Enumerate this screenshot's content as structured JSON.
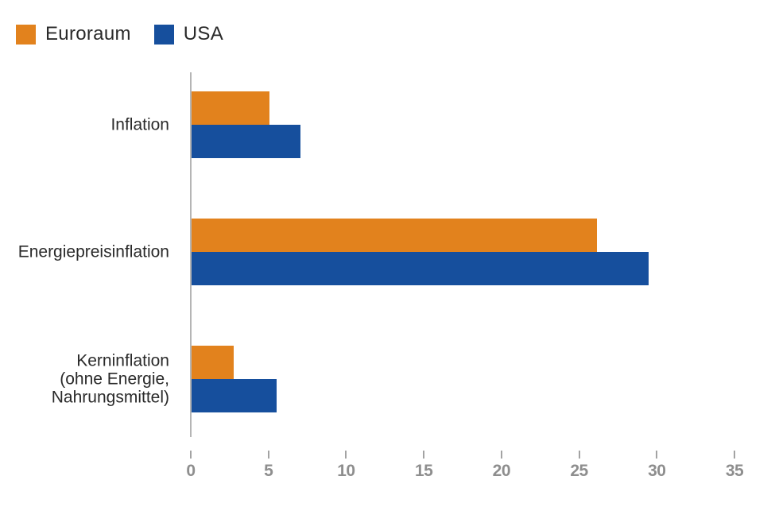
{
  "legend": {
    "items": [
      {
        "label": "Euroraum",
        "color": "#e2821d"
      },
      {
        "label": "USA",
        "color": "#164f9d"
      }
    ]
  },
  "chart_data": {
    "type": "bar",
    "orientation": "horizontal",
    "title": "",
    "categories": [
      "Inflation",
      "Energiepreisinflation",
      "Kerninflation\n(ohne Energie,\nNahrungsmittel)"
    ],
    "series": [
      {
        "name": "Euroraum",
        "color": "#e2821d",
        "values": [
          5.0,
          26.1,
          2.7
        ]
      },
      {
        "name": "USA",
        "color": "#164f9d",
        "values": [
          7.0,
          29.4,
          5.5
        ]
      }
    ],
    "xlabel": "",
    "ylabel": "",
    "xlim": [
      0,
      35
    ],
    "xticks": [
      0,
      5,
      10,
      15,
      20,
      25,
      30,
      35
    ],
    "grid": false,
    "legend_position": "top-left",
    "axis_line_color": "#b5b5b5",
    "tick_mark_color": "#a3a3a3",
    "tick_label_color": "#8e8e8e",
    "category_label_color": "#2a2a2a"
  }
}
